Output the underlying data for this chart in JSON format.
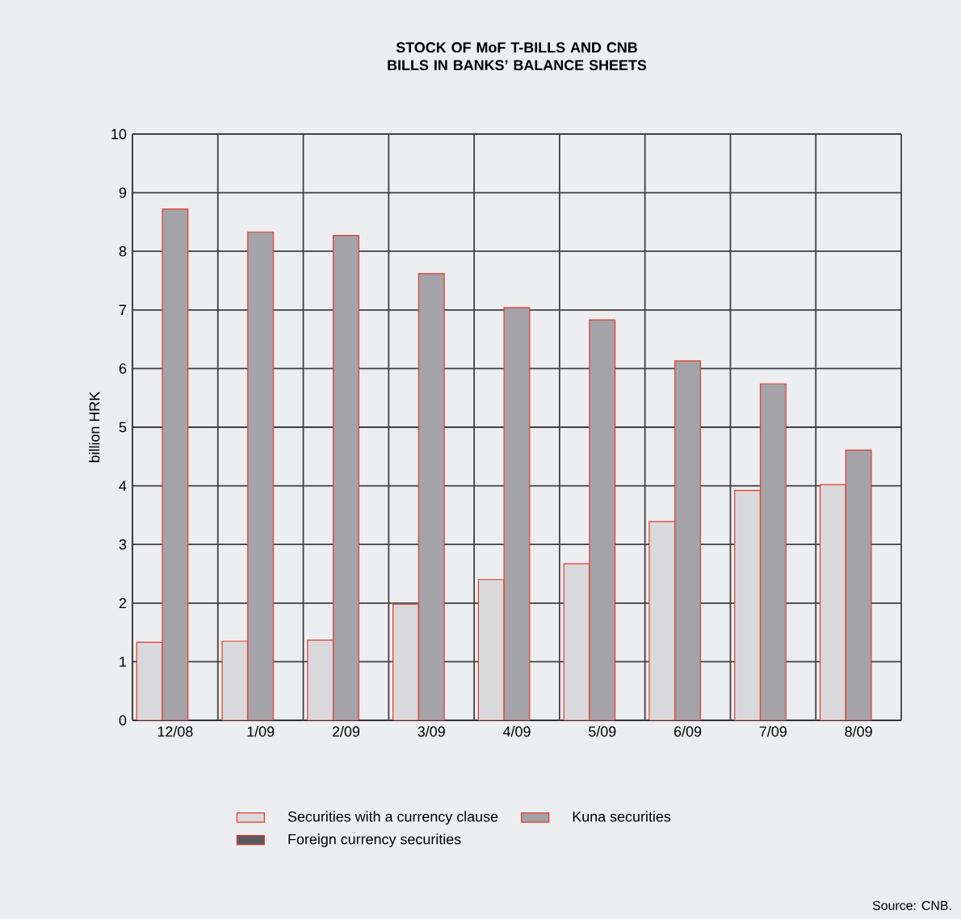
{
  "chart_data": {
    "type": "bar",
    "title": "STOCK OF MoF T-BILLS AND CNB BILLS IN BANKS’ BALANCE SHEETS",
    "ylabel": "billion HRK",
    "categories": [
      "12/08",
      "1/09",
      "2/09",
      "3/09",
      "4/09",
      "5/09",
      "6/09",
      "7/09",
      "8/09"
    ],
    "series": [
      {
        "name": "Securities with a currency clause",
        "color": "#d9d9db",
        "values": [
          1.33,
          1.35,
          1.37,
          1.98,
          2.4,
          2.67,
          3.39,
          3.92,
          4.02
        ]
      },
      {
        "name": "Kuna securities",
        "color": "#a4a3a8",
        "values": [
          8.72,
          8.33,
          8.27,
          7.62,
          7.04,
          6.83,
          6.13,
          5.74,
          4.61
        ]
      },
      {
        "name": "Foreign currency securities",
        "color": "#5a5a5c",
        "values": [
          null,
          null,
          null,
          null,
          null,
          null,
          null,
          null,
          null
        ]
      }
    ],
    "ylim": [
      0,
      10
    ],
    "yticks": [
      0,
      1,
      2,
      3,
      4,
      5,
      6,
      7,
      8,
      9,
      10
    ],
    "grid": true,
    "legend": "bottom",
    "annotations": [
      "Source: CNB."
    ]
  }
}
